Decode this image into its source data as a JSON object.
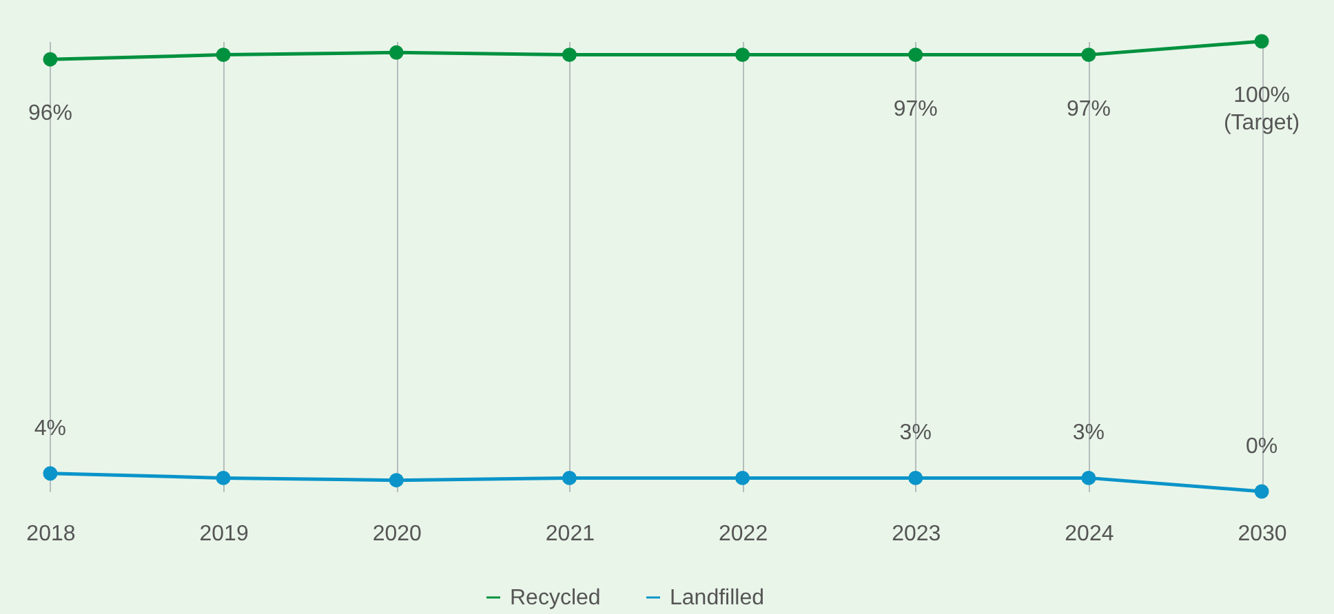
{
  "chart_data": {
    "type": "line",
    "categories": [
      "2018",
      "2019",
      "2020",
      "2021",
      "2022",
      "2023",
      "2024",
      "2030"
    ],
    "series": [
      {
        "name": "Recycled",
        "color": "#00913f",
        "values": [
          96,
          97,
          97.5,
          97,
          97,
          97,
          97,
          100
        ],
        "value_labels": [
          "96%",
          null,
          null,
          null,
          null,
          "97%",
          "97%",
          "100%\n(Target)"
        ]
      },
      {
        "name": "Landfilled",
        "color": "#0a94c9",
        "values": [
          4,
          3,
          2.5,
          3,
          3,
          3,
          3,
          0
        ],
        "value_labels": [
          "4%",
          null,
          null,
          null,
          null,
          "3%",
          "3%",
          "0%"
        ]
      }
    ],
    "ylim": [
      0,
      100
    ],
    "grid": "x",
    "legend": "bottom",
    "marker": "circle",
    "line_style": "solid"
  }
}
